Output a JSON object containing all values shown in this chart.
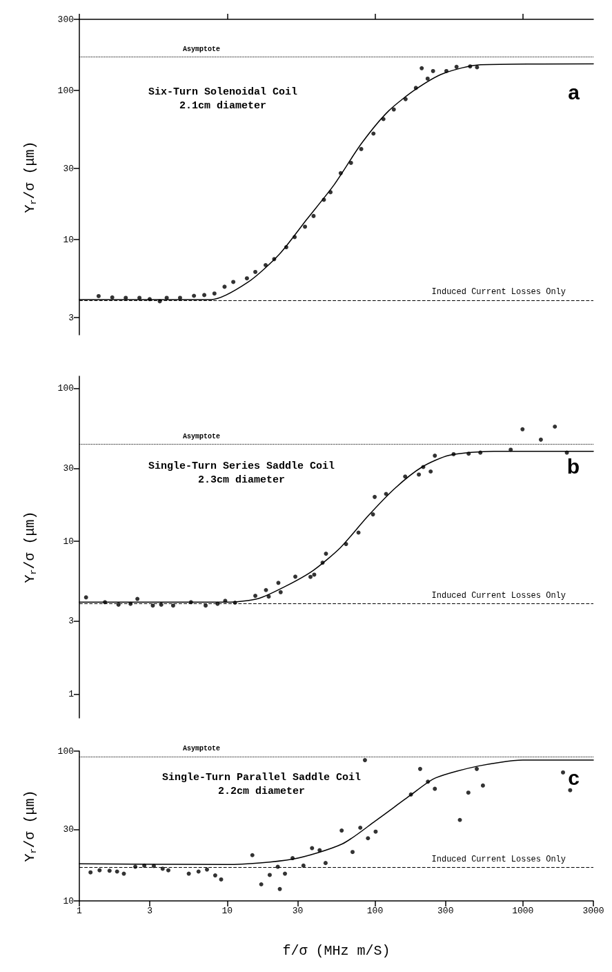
{
  "chart_data": [
    {
      "type": "scatter",
      "ylabel": "Y$_{r}$/σ (μm)",
      "annotations": [
        "Six-Turn Solenoidal Coil\n2.1cm diameter",
        "a"
      ],
      "xlim": [
        1,
        3000
      ],
      "xticks": [
        {
          "value": 1,
          "label": null
        },
        {
          "value": 10,
          "label": null
        },
        {
          "value": 100,
          "label": null
        },
        {
          "value": 1000,
          "label": null
        }
      ],
      "ylim": [
        2.3,
        300
      ],
      "yticks": [
        300,
        100,
        30,
        10,
        3
      ],
      "log": "xy",
      "tick_labels": "y",
      "grid": false,
      "ref_lines": [
        {
          "axis": "y",
          "value": 168,
          "label": "Asymptote",
          "line_style": "dotted"
        },
        {
          "axis": "y",
          "value": 3.9,
          "label": "Induced Current Losses Only",
          "line_style": "dashed"
        }
      ],
      "series": [
        {
          "color": "#000000",
          "marker": "circle",
          "x": [
            1.35,
            1.67,
            2.06,
            2.55,
            2.99,
            3.5,
            3.9,
            4.8,
            5.96,
            7.0,
            8.2,
            9.6,
            11.0,
            13.6,
            15.5,
            18.2,
            20.8,
            25.1,
            28.6,
            33.6,
            38.4,
            45.1,
            50.0,
            58.6,
            68.8,
            80.7,
            97.6,
            114,
            134,
            161,
            189,
            207,
            227,
            247,
            304,
            356,
            440,
            490
          ],
          "values": [
            4.18,
            4.1,
            4.07,
            4.07,
            3.99,
            3.86,
            4.07,
            4.07,
            4.2,
            4.25,
            4.35,
            4.83,
            5.2,
            5.5,
            6.07,
            6.75,
            7.4,
            8.9,
            10.4,
            12.2,
            14.4,
            18.5,
            20.8,
            27.9,
            32.7,
            40.5,
            51.4,
            64.3,
            74.6,
            87.5,
            104,
            141,
            120,
            135,
            135,
            144,
            145,
            143
          ]
        },
        {
          "type": "line",
          "marker": "none",
          "color": "#000000",
          "line_style": "solid",
          "x": [
            1,
            7.8,
            13.9,
            22.6,
            34.4,
            52.7,
            80.7,
            123,
            189,
            290,
            519,
            3000
          ],
          "values": [
            3.96,
            3.96,
            5.2,
            8.0,
            13.6,
            23.2,
            43.9,
            72.6,
            102,
            130,
            149,
            151
          ]
        }
      ]
    },
    {
      "type": "scatter",
      "ylabel": "Y$_{r}$/σ (μm)",
      "annotations": [
        "Single-Turn Series Saddle Coil\n2.3cm diameter",
        "b"
      ],
      "xlim": [
        1,
        3000
      ],
      "ylim": [
        0.7,
        120
      ],
      "yticks": [
        100,
        30,
        10,
        3,
        1
      ],
      "log": "xy",
      "tick_labels": "y",
      "grid": false,
      "ref_lines": [
        {
          "axis": "y",
          "value": 43.2,
          "label": "Asymptote",
          "line_style": "dotted"
        },
        {
          "axis": "y",
          "value": 3.9,
          "label": "Induced Current Losses Only",
          "line_style": "dashed"
        }
      ],
      "series": [
        {
          "color": "#000000",
          "marker": "circle",
          "x": [
            1.11,
            1.49,
            1.84,
            2.22,
            2.47,
            3.14,
            3.58,
            4.31,
            5.69,
            7.15,
            8.61,
            9.7,
            11.3,
            15.5,
            18.3,
            19.1,
            22.2,
            23.0,
            28.9,
            36.6,
            38.8,
            44.2,
            46.6,
            63.7,
            77.3,
            96.9,
            99.5,
            118.8,
            160,
            198,
            212,
            238,
            254,
            340,
            430,
            516,
            828,
            995,
            1324,
            1647,
            1985
          ],
          "values": [
            4.3,
            4.0,
            3.85,
            3.9,
            4.2,
            3.8,
            3.85,
            3.8,
            4.0,
            3.8,
            3.9,
            4.08,
            3.97,
            4.4,
            4.8,
            4.35,
            5.35,
            4.65,
            5.87,
            5.85,
            6.05,
            7.25,
            8.3,
            9.6,
            11.4,
            15.0,
            19.5,
            20.4,
            26.5,
            27.3,
            30.6,
            28.6,
            36.3,
            37.1,
            37.4,
            38,
            39.7,
            54,
            46.2,
            56.2,
            38.0
          ]
        },
        {
          "type": "line",
          "marker": "none",
          "color": "#000000",
          "line_style": "solid",
          "x": [
            1,
            10,
            16.3,
            25,
            38.2,
            58.4,
            89.4,
            137,
            208,
            318,
            636,
            3000
          ],
          "values": [
            4.0,
            4.0,
            4.23,
            5.1,
            6.45,
            9.1,
            14.6,
            22.3,
            30.6,
            36.5,
            38.8,
            38.8
          ]
        }
      ]
    },
    {
      "type": "scatter",
      "ylabel": "Y$_{r}$/σ (μm)",
      "xlabel": "f/σ (MHz m/S)",
      "annotations": [
        "Single-Turn Parallel Saddle Coil\n2.2cm diameter",
        "c"
      ],
      "xlim": [
        1,
        3000
      ],
      "xticks": [
        1,
        3,
        10,
        30,
        100,
        300,
        1000,
        3000
      ],
      "ylim": [
        10,
        100
      ],
      "yticks": [
        100,
        30,
        10
      ],
      "log": "xy",
      "grid": false,
      "ref_lines": [
        {
          "axis": "y",
          "value": 92,
          "label": "Asymptote",
          "line_style": "dotted"
        },
        {
          "axis": "y",
          "value": 16.7,
          "label": "Induced Current Losses Only",
          "line_style": "dashed"
        }
      ],
      "series": [
        {
          "color": "#000000",
          "marker": "circle",
          "x": [
            1.19,
            1.37,
            1.6,
            1.8,
            2.0,
            2.39,
            2.75,
            3.19,
            3.66,
            4.0,
            5.5,
            6.4,
            7.3,
            8.3,
            9.1,
            14.8,
            17.0,
            19.4,
            22.0,
            22.7,
            24.6,
            27.7,
            32.8,
            37.5,
            42.2,
            46.3,
            59.5,
            70.5,
            79.5,
            85.5,
            89.6,
            101,
            175,
            202,
            228,
            254,
            375,
            428,
            488,
            537,
            1870,
            2090
          ],
          "values": [
            15.5,
            16.0,
            15.9,
            15.7,
            15.2,
            16.9,
            17.2,
            17.1,
            16.4,
            16.0,
            15.2,
            15.7,
            16.2,
            14.8,
            13.9,
            20.2,
            12.9,
            14.9,
            16.9,
            12.0,
            15.2,
            19.3,
            17.2,
            22.5,
            21.8,
            17.9,
            29.5,
            21.2,
            30.8,
            87,
            26.2,
            29,
            51.3,
            76,
            62.5,
            56,
            34.7,
            52.8,
            76,
            58.9,
            72,
            54.8
          ]
        },
        {
          "type": "line",
          "marker": "none",
          "color": "#000000",
          "line_style": "solid",
          "x": [
            1,
            10,
            27.7,
            60,
            101,
            175,
            255,
            500,
            1000,
            3000
          ],
          "values": [
            17.7,
            17.5,
            19.0,
            24,
            34.3,
            51,
            66,
            79.5,
            87,
            87
          ]
        }
      ]
    }
  ]
}
